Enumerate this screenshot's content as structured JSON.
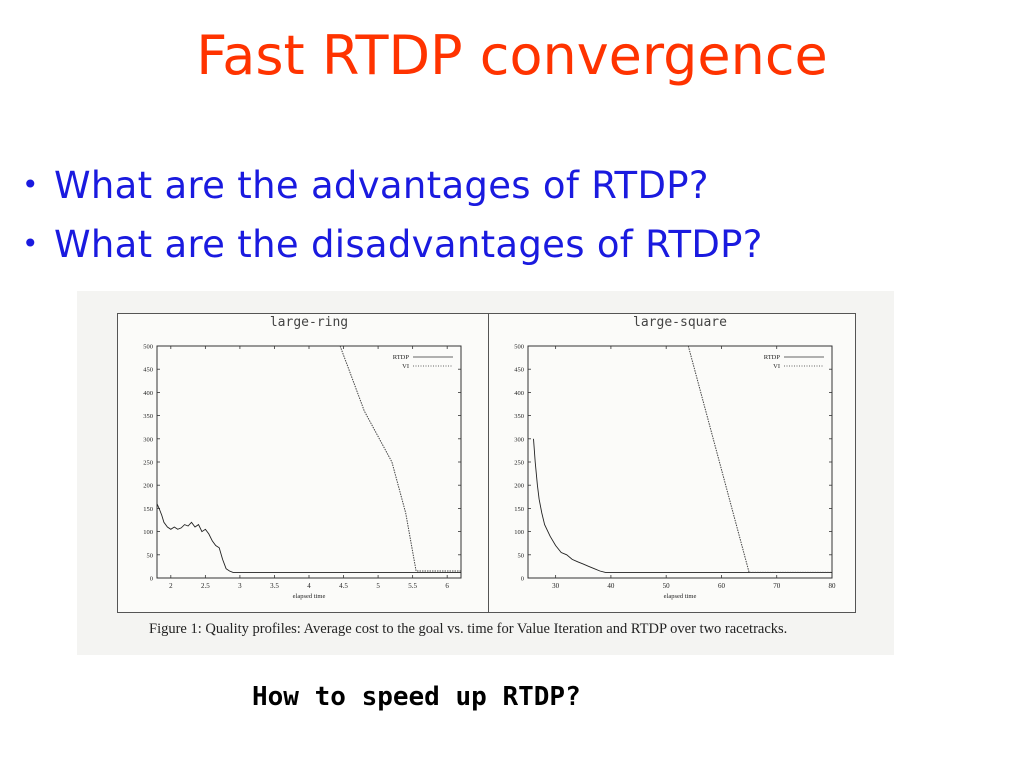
{
  "slide": {
    "title": "Fast RTDP convergence",
    "bullets": [
      "What are the advantages of RTDP?",
      "What are the disadvantages of RTDP?"
    ],
    "bottom_question": "How to speed up RTDP?",
    "colors": {
      "title": "#ff3300",
      "bullets": "#1a1adf",
      "question": "#000000"
    }
  },
  "figure": {
    "caption": "Figure 1: Quality profiles: Average cost to the goal vs. time for Value Iteration and RTDP over two racetracks."
  },
  "chart_data": [
    {
      "type": "line",
      "title": "large-ring",
      "xlabel": "elapsed time",
      "ylabel": "",
      "xlim": [
        1.8,
        6.2
      ],
      "ylim": [
        0,
        500
      ],
      "xticks": [
        2,
        2.5,
        3,
        3.5,
        4,
        4.5,
        5,
        5.5,
        6
      ],
      "xtick_labels": [
        "2",
        "2.5",
        "3",
        "3.5",
        "4",
        "4.5",
        "5",
        "5.5",
        "6"
      ],
      "yticks": [
        0,
        50,
        100,
        150,
        200,
        250,
        300,
        350,
        400,
        450,
        500
      ],
      "legend": {
        "placement": "top-right",
        "entries": [
          "RTDP",
          "VI"
        ]
      },
      "series": [
        {
          "name": "RTDP",
          "style": "solid",
          "x": [
            1.8,
            1.83,
            1.87,
            1.9,
            1.95,
            2.0,
            2.05,
            2.1,
            2.15,
            2.2,
            2.25,
            2.3,
            2.35,
            2.4,
            2.45,
            2.5,
            2.55,
            2.6,
            2.65,
            2.7,
            2.75,
            2.8,
            2.85,
            2.9,
            2.95,
            3.0,
            3.2,
            3.6,
            4.0,
            5.0,
            6.2
          ],
          "y": [
            160,
            150,
            135,
            120,
            110,
            105,
            110,
            105,
            108,
            115,
            112,
            120,
            110,
            115,
            100,
            105,
            95,
            80,
            70,
            65,
            40,
            20,
            15,
            12,
            12,
            12,
            12,
            12,
            12,
            12,
            12
          ]
        },
        {
          "name": "VI",
          "style": "dotted",
          "x": [
            4.45,
            4.6,
            4.8,
            5.0,
            5.2,
            5.4,
            5.55,
            6.2
          ],
          "y": [
            500,
            440,
            360,
            305,
            250,
            140,
            15,
            15
          ]
        }
      ]
    },
    {
      "type": "line",
      "title": "large-square",
      "xlabel": "elapsed time",
      "ylabel": "",
      "xlim": [
        25,
        80
      ],
      "ylim": [
        0,
        500
      ],
      "xticks": [
        30,
        40,
        50,
        60,
        70,
        80
      ],
      "xtick_labels": [
        "30",
        "40",
        "50",
        "60",
        "70",
        "80"
      ],
      "yticks": [
        0,
        50,
        100,
        150,
        200,
        250,
        300,
        350,
        400,
        450,
        500
      ],
      "legend": {
        "placement": "top-right",
        "entries": [
          "RTDP",
          "VI"
        ]
      },
      "series": [
        {
          "name": "RTDP",
          "style": "solid",
          "x": [
            26,
            26.3,
            26.7,
            27,
            27.5,
            28,
            29,
            30,
            31,
            32,
            33,
            34,
            35,
            36,
            37,
            38,
            39,
            40,
            45,
            80
          ],
          "y": [
            300,
            250,
            200,
            170,
            140,
            115,
            90,
            70,
            55,
            50,
            40,
            35,
            30,
            25,
            20,
            15,
            12,
            12,
            12,
            12
          ]
        },
        {
          "name": "VI",
          "style": "dotted",
          "x": [
            54,
            65,
            80
          ],
          "y": [
            500,
            12,
            12
          ]
        }
      ]
    }
  ]
}
